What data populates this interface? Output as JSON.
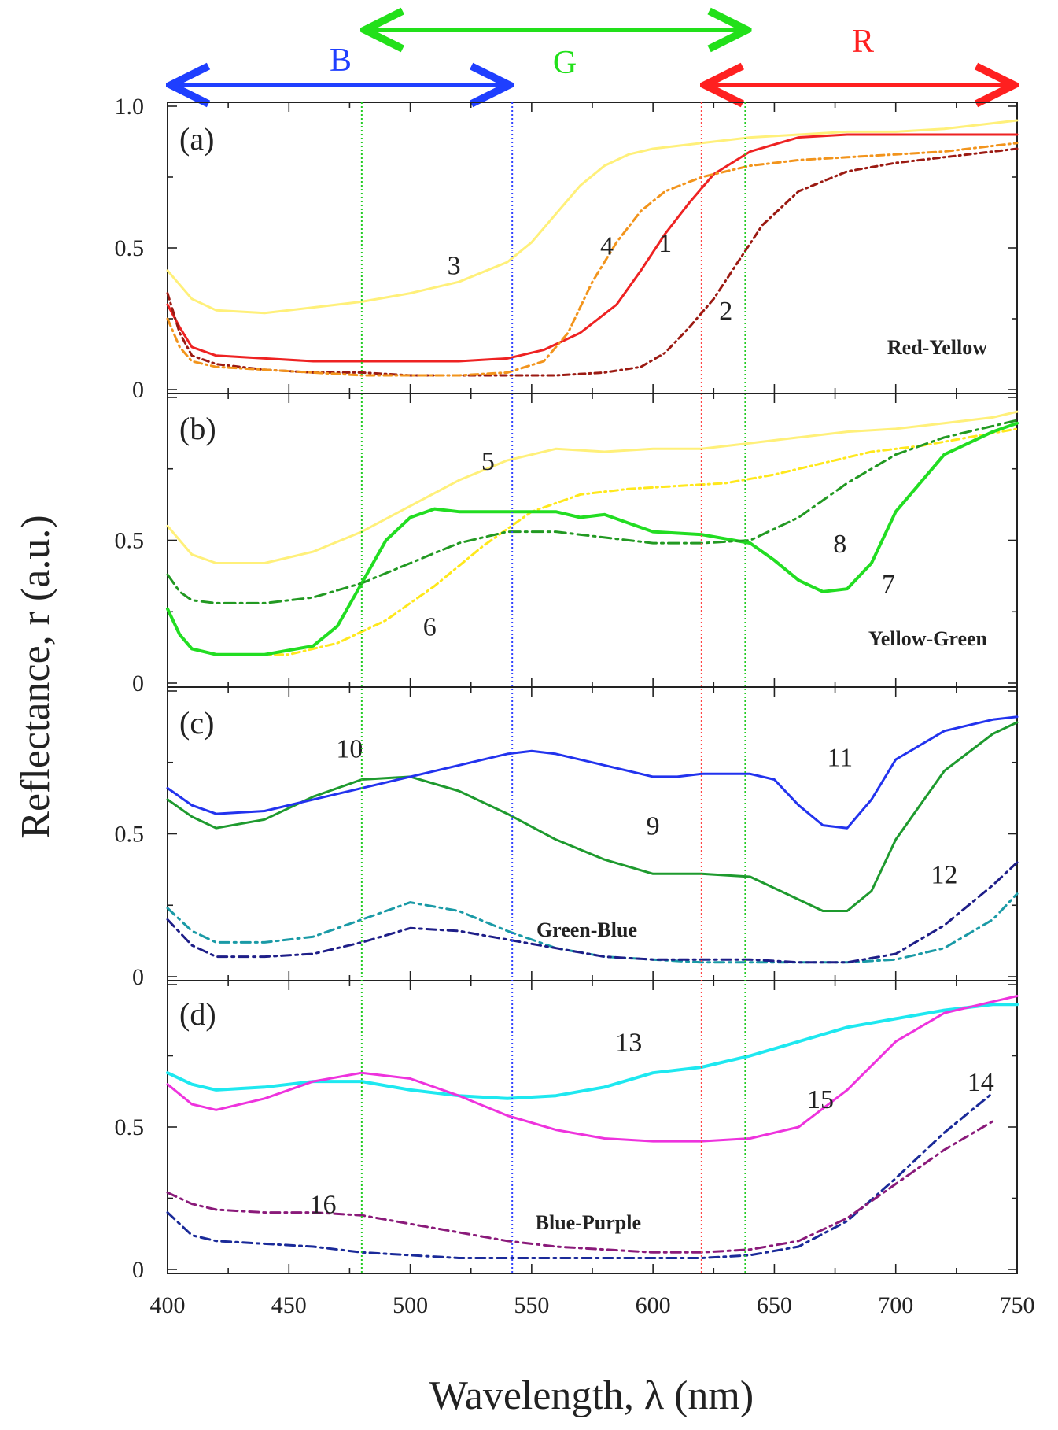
{
  "chart_data": {
    "type": "line",
    "xlabel": "Wavelength, λ (nm)",
    "ylabel": "Reflectance, r (a.u.)",
    "xlim": [
      400,
      750
    ],
    "xticks": [
      "400",
      "450",
      "500",
      "550",
      "600",
      "650",
      "700",
      "750"
    ],
    "yticks": [
      "0",
      "0.5",
      "1.0"
    ],
    "bands": [
      {
        "label": "B",
        "range": [
          400,
          542
        ],
        "color": "#1f3fff"
      },
      {
        "label": "G",
        "range": [
          480,
          640
        ],
        "color": "#22e01a"
      },
      {
        "label": "R",
        "range": [
          620,
          750
        ],
        "color": "#ff2020"
      }
    ],
    "guide_lines": [
      {
        "x": 480,
        "color": "#22cc22"
      },
      {
        "x": 542,
        "color": "#3344ff"
      },
      {
        "x": 620,
        "color": "#ff4444"
      },
      {
        "x": 638,
        "color": "#22cc22"
      }
    ],
    "panels": [
      {
        "label": "(a)",
        "group": "Red-Yellow",
        "ylim": [
          0,
          1
        ],
        "series": [
          {
            "name": "1",
            "color": "#ee2222",
            "dash": "solid",
            "width": 3,
            "x": [
              400,
              405,
              410,
              420,
              440,
              460,
              480,
              500,
              520,
              540,
              555,
              570,
              585,
              595,
              605,
              615,
              625,
              640,
              660,
              680,
              700,
              720,
              740,
              750
            ],
            "y": [
              0.3,
              0.22,
              0.15,
              0.12,
              0.11,
              0.1,
              0.1,
              0.1,
              0.1,
              0.11,
              0.14,
              0.2,
              0.3,
              0.42,
              0.55,
              0.66,
              0.76,
              0.84,
              0.89,
              0.9,
              0.9,
              0.9,
              0.9,
              0.9
            ]
          },
          {
            "name": "2",
            "color": "#9b1a12",
            "dash": "8 5 2 5",
            "width": 3,
            "x": [
              400,
              405,
              410,
              420,
              440,
              460,
              480,
              500,
              520,
              540,
              560,
              580,
              595,
              605,
              615,
              625,
              635,
              645,
              660,
              680,
              700,
              720,
              740,
              750
            ],
            "y": [
              0.34,
              0.2,
              0.12,
              0.09,
              0.07,
              0.06,
              0.06,
              0.05,
              0.05,
              0.05,
              0.05,
              0.06,
              0.08,
              0.13,
              0.22,
              0.32,
              0.45,
              0.58,
              0.7,
              0.77,
              0.8,
              0.82,
              0.84,
              0.85
            ]
          },
          {
            "name": "3",
            "color": "#fff07a",
            "dash": "solid",
            "width": 3,
            "x": [
              400,
              410,
              420,
              440,
              460,
              480,
              500,
              520,
              540,
              550,
              560,
              570,
              580,
              590,
              600,
              620,
              640,
              660,
              680,
              700,
              720,
              740,
              750
            ],
            "y": [
              0.42,
              0.32,
              0.28,
              0.27,
              0.29,
              0.31,
              0.34,
              0.38,
              0.45,
              0.52,
              0.62,
              0.72,
              0.79,
              0.83,
              0.85,
              0.87,
              0.89,
              0.9,
              0.91,
              0.91,
              0.92,
              0.94,
              0.95
            ]
          },
          {
            "name": "4",
            "color": "#f2941c",
            "dash": "10 5 2 5",
            "width": 3,
            "x": [
              400,
              405,
              410,
              420,
              440,
              460,
              480,
              500,
              520,
              540,
              555,
              565,
              575,
              585,
              595,
              605,
              620,
              640,
              660,
              680,
              700,
              720,
              740,
              750
            ],
            "y": [
              0.25,
              0.15,
              0.1,
              0.08,
              0.07,
              0.06,
              0.05,
              0.05,
              0.05,
              0.06,
              0.1,
              0.2,
              0.38,
              0.52,
              0.63,
              0.7,
              0.75,
              0.79,
              0.81,
              0.82,
              0.83,
              0.84,
              0.86,
              0.87
            ]
          }
        ],
        "labels": [
          {
            "text": "1",
            "x": 605,
            "y": 0.52
          },
          {
            "text": "2",
            "x": 630,
            "y": 0.28
          },
          {
            "text": "3",
            "x": 518,
            "y": 0.44
          },
          {
            "text": "4",
            "x": 581,
            "y": 0.51
          }
        ]
      },
      {
        "label": "(b)",
        "group": "Yellow-Green",
        "ylim": [
          0,
          1
        ],
        "series": [
          {
            "name": "5",
            "color": "#fff07a",
            "dash": "solid",
            "width": 3,
            "x": [
              400,
              410,
              420,
              440,
              460,
              480,
              500,
              520,
              540,
              560,
              580,
              600,
              620,
              640,
              660,
              680,
              700,
              720,
              740,
              750
            ],
            "y": [
              0.55,
              0.45,
              0.42,
              0.42,
              0.46,
              0.53,
              0.62,
              0.71,
              0.78,
              0.82,
              0.81,
              0.82,
              0.82,
              0.84,
              0.86,
              0.88,
              0.89,
              0.91,
              0.93,
              0.95
            ]
          },
          {
            "name": "6",
            "color": "#ffe81c",
            "dash": "10 5 2 5",
            "width": 3,
            "x": [
              430,
              450,
              470,
              490,
              510,
              530,
              550,
              570,
              590,
              610,
              630,
              650,
              670,
              690,
              710,
              730,
              750
            ],
            "y": [
              0.1,
              0.1,
              0.14,
              0.22,
              0.34,
              0.48,
              0.6,
              0.66,
              0.68,
              0.69,
              0.7,
              0.73,
              0.77,
              0.81,
              0.83,
              0.86,
              0.89
            ]
          },
          {
            "name": "7",
            "color": "#22dd22",
            "dash": "solid",
            "width": 4,
            "x": [
              400,
              405,
              410,
              420,
              440,
              460,
              470,
              480,
              490,
              500,
              510,
              520,
              540,
              560,
              570,
              580,
              590,
              600,
              620,
              640,
              650,
              660,
              670,
              680,
              690,
              700,
              720,
              740,
              750
            ],
            "y": [
              0.26,
              0.17,
              0.12,
              0.1,
              0.1,
              0.13,
              0.2,
              0.35,
              0.5,
              0.58,
              0.61,
              0.6,
              0.6,
              0.6,
              0.58,
              0.59,
              0.56,
              0.53,
              0.52,
              0.49,
              0.43,
              0.36,
              0.32,
              0.33,
              0.42,
              0.6,
              0.8,
              0.88,
              0.91
            ]
          },
          {
            "name": "8",
            "color": "#229922",
            "dash": "14 6 3 6",
            "width": 3,
            "x": [
              400,
              405,
              410,
              420,
              440,
              460,
              480,
              500,
              520,
              540,
              560,
              580,
              600,
              620,
              640,
              660,
              680,
              700,
              720,
              740,
              750
            ],
            "y": [
              0.38,
              0.32,
              0.29,
              0.28,
              0.28,
              0.3,
              0.35,
              0.42,
              0.49,
              0.53,
              0.53,
              0.51,
              0.49,
              0.49,
              0.5,
              0.58,
              0.7,
              0.8,
              0.86,
              0.9,
              0.92
            ]
          }
        ],
        "labels": [
          {
            "text": "5",
            "x": 532,
            "y": 0.78
          },
          {
            "text": "6",
            "x": 508,
            "y": 0.2
          },
          {
            "text": "7",
            "x": 697,
            "y": 0.35
          },
          {
            "text": "8",
            "x": 677,
            "y": 0.49
          }
        ]
      },
      {
        "label": "(c)",
        "group": "Green-Blue",
        "ylim": [
          0,
          1
        ],
        "series": [
          {
            "name": "9",
            "color": "#1e9a2e",
            "dash": "solid",
            "width": 3,
            "x": [
              400,
              410,
              420,
              440,
              460,
              480,
              500,
              520,
              540,
              560,
              580,
              600,
              620,
              640,
              660,
              670,
              680,
              690,
              700,
              720,
              740,
              750
            ],
            "y": [
              0.62,
              0.56,
              0.52,
              0.55,
              0.63,
              0.69,
              0.7,
              0.65,
              0.57,
              0.48,
              0.41,
              0.36,
              0.36,
              0.35,
              0.27,
              0.23,
              0.23,
              0.3,
              0.48,
              0.72,
              0.85,
              0.89
            ]
          },
          {
            "name": "10",
            "color": "#1a9aa6",
            "dash": "12 6 3 6",
            "width": 3,
            "x": [
              400,
              410,
              420,
              440,
              460,
              480,
              500,
              520,
              540,
              560,
              580,
              600,
              620,
              640,
              660,
              680,
              700,
              720,
              740,
              750
            ],
            "y": [
              0.24,
              0.16,
              0.12,
              0.12,
              0.14,
              0.2,
              0.26,
              0.23,
              0.16,
              0.1,
              0.07,
              0.06,
              0.05,
              0.05,
              0.05,
              0.05,
              0.06,
              0.1,
              0.2,
              0.29
            ]
          },
          {
            "name": "11",
            "color": "#2233ee",
            "dash": "solid",
            "width": 3,
            "x": [
              400,
              410,
              420,
              440,
              460,
              480,
              500,
              520,
              540,
              550,
              560,
              580,
              600,
              610,
              620,
              640,
              650,
              660,
              670,
              680,
              690,
              700,
              720,
              740,
              750
            ],
            "y": [
              0.66,
              0.6,
              0.57,
              0.58,
              0.62,
              0.66,
              0.7,
              0.74,
              0.78,
              0.79,
              0.78,
              0.74,
              0.7,
              0.7,
              0.71,
              0.71,
              0.69,
              0.6,
              0.53,
              0.52,
              0.62,
              0.76,
              0.86,
              0.9,
              0.91
            ]
          },
          {
            "name": "12",
            "color": "#1e1e88",
            "dash": "12 6 3 6",
            "width": 3,
            "x": [
              400,
              410,
              420,
              440,
              460,
              480,
              500,
              520,
              540,
              560,
              580,
              600,
              620,
              640,
              660,
              680,
              700,
              720,
              740,
              750
            ],
            "y": [
              0.2,
              0.11,
              0.07,
              0.07,
              0.08,
              0.12,
              0.17,
              0.16,
              0.13,
              0.1,
              0.07,
              0.06,
              0.06,
              0.06,
              0.05,
              0.05,
              0.08,
              0.18,
              0.32,
              0.4
            ]
          }
        ],
        "labels": [
          {
            "text": "9",
            "x": 600,
            "y": 0.53
          },
          {
            "text": "10",
            "x": 475,
            "y": 0.8
          },
          {
            "text": "11",
            "x": 677,
            "y": 0.77
          },
          {
            "text": "12",
            "x": 720,
            "y": 0.36
          }
        ]
      },
      {
        "label": "(d)",
        "group": "Blue-Purple",
        "ylim": [
          0,
          1
        ],
        "series": [
          {
            "name": "13",
            "color": "#1ee8f0",
            "dash": "solid",
            "width": 4,
            "x": [
              400,
              410,
              420,
              440,
              460,
              480,
              500,
              520,
              540,
              560,
              580,
              600,
              620,
              640,
              660,
              680,
              700,
              720,
              740,
              750
            ],
            "y": [
              0.69,
              0.65,
              0.63,
              0.64,
              0.66,
              0.66,
              0.63,
              0.61,
              0.6,
              0.61,
              0.64,
              0.69,
              0.71,
              0.75,
              0.8,
              0.85,
              0.88,
              0.91,
              0.93,
              0.93
            ]
          },
          {
            "name": "14",
            "color": "#1a2a99",
            "dash": "12 6 3 6",
            "width": 3,
            "x": [
              400,
              410,
              420,
              440,
              460,
              480,
              500,
              520,
              540,
              560,
              580,
              600,
              620,
              640,
              660,
              680,
              700,
              720,
              740
            ],
            "y": [
              0.2,
              0.12,
              0.1,
              0.09,
              0.08,
              0.06,
              0.05,
              0.04,
              0.04,
              0.04,
              0.04,
              0.04,
              0.04,
              0.05,
              0.08,
              0.17,
              0.32,
              0.48,
              0.62
            ]
          },
          {
            "name": "15",
            "color": "#ee33dd",
            "dash": "solid",
            "width": 3,
            "x": [
              400,
              410,
              420,
              440,
              460,
              480,
              500,
              520,
              540,
              560,
              580,
              600,
              620,
              640,
              660,
              680,
              700,
              720,
              740,
              750
            ],
            "y": [
              0.65,
              0.58,
              0.56,
              0.6,
              0.66,
              0.69,
              0.67,
              0.61,
              0.54,
              0.49,
              0.46,
              0.45,
              0.45,
              0.46,
              0.5,
              0.63,
              0.8,
              0.9,
              0.94,
              0.96
            ]
          },
          {
            "name": "16",
            "color": "#8a1a7a",
            "dash": "12 6 3 6",
            "width": 3,
            "x": [
              400,
              410,
              420,
              440,
              460,
              480,
              500,
              520,
              540,
              560,
              580,
              600,
              620,
              640,
              660,
              680,
              700,
              720,
              740
            ],
            "y": [
              0.27,
              0.23,
              0.21,
              0.2,
              0.2,
              0.19,
              0.16,
              0.13,
              0.1,
              0.08,
              0.07,
              0.06,
              0.06,
              0.07,
              0.1,
              0.18,
              0.3,
              0.42,
              0.52
            ]
          }
        ],
        "labels": [
          {
            "text": "13",
            "x": 590,
            "y": 0.8
          },
          {
            "text": "14",
            "x": 735,
            "y": 0.66
          },
          {
            "text": "15",
            "x": 669,
            "y": 0.6
          },
          {
            "text": "16",
            "x": 464,
            "y": 0.23
          }
        ]
      }
    ]
  }
}
